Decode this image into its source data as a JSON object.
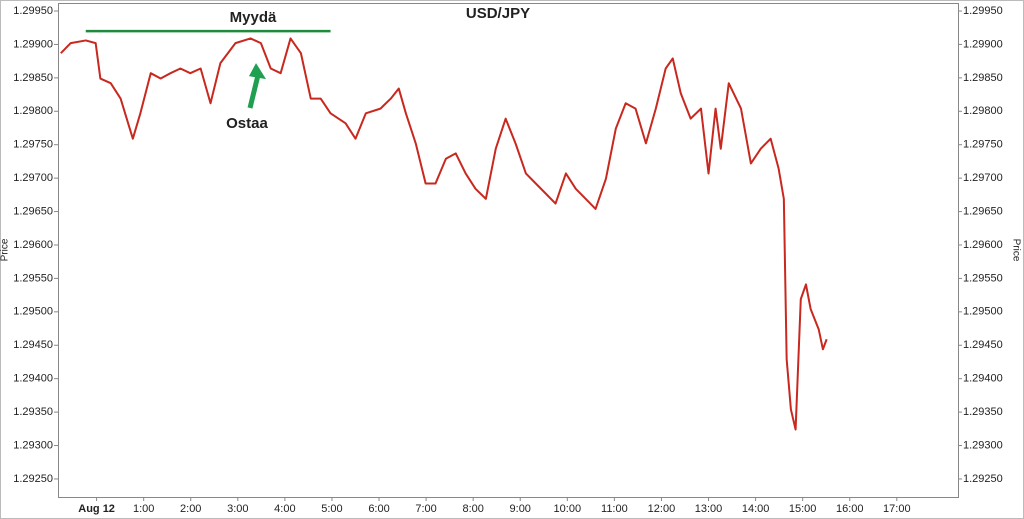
{
  "chart_data": {
    "type": "line",
    "title": "USD/JPY",
    "y_label": "Price",
    "x": [
      -0.76,
      -0.55,
      -0.23,
      -0.02,
      0.08,
      0.3,
      0.51,
      0.77,
      0.93,
      1.15,
      1.36,
      1.57,
      1.78,
      1.99,
      2.21,
      2.42,
      2.63,
      2.95,
      3.27,
      3.49,
      3.7,
      3.91,
      4.12,
      4.34,
      4.55,
      4.76,
      4.97,
      5.29,
      5.5,
      5.72,
      6.03,
      6.25,
      6.42,
      6.57,
      6.78,
      6.99,
      7.2,
      7.42,
      7.63,
      7.84,
      8.05,
      8.27,
      8.48,
      8.69,
      8.9,
      9.12,
      9.33,
      9.54,
      9.75,
      9.97,
      10.18,
      10.39,
      10.6,
      10.82,
      11.03,
      11.24,
      11.45,
      11.67,
      11.88,
      12.09,
      12.24,
      12.41,
      12.62,
      12.84,
      13.0,
      13.15,
      13.26,
      13.43,
      13.69,
      13.9,
      14.11,
      14.32,
      14.49,
      14.6,
      14.66,
      14.75,
      14.85,
      14.96,
      15.07,
      15.17,
      15.34,
      15.43,
      15.51
    ],
    "series": [
      {
        "name": "USD/JPY",
        "color": "#c8281e",
        "values": [
          1.29887,
          1.29902,
          1.29906,
          1.29902,
          1.29849,
          1.29842,
          1.29819,
          1.29759,
          1.29797,
          1.29857,
          1.29849,
          1.29857,
          1.29864,
          1.29857,
          1.29864,
          1.29812,
          1.29872,
          1.29902,
          1.29909,
          1.29902,
          1.29864,
          1.29857,
          1.29909,
          1.29887,
          1.29819,
          1.29819,
          1.29797,
          1.29782,
          1.29759,
          1.29797,
          1.29804,
          1.29819,
          1.29834,
          1.29797,
          1.29752,
          1.29692,
          1.29692,
          1.29729,
          1.29737,
          1.29707,
          1.29684,
          1.29669,
          1.29744,
          1.29789,
          1.29752,
          1.29707,
          1.29692,
          1.29677,
          1.29662,
          1.29707,
          1.29684,
          1.29669,
          1.29654,
          1.29699,
          1.29774,
          1.29812,
          1.29804,
          1.29752,
          1.29804,
          1.29864,
          1.29879,
          1.29827,
          1.29789,
          1.29804,
          1.29707,
          1.29804,
          1.29744,
          1.29842,
          1.29804,
          1.29722,
          1.29744,
          1.29759,
          1.29714,
          1.29669,
          1.29429,
          1.29354,
          1.29324,
          1.29519,
          1.29541,
          1.29504,
          1.29474,
          1.29444,
          1.29459
        ]
      }
    ],
    "xlim": [
      -0.82,
      18.3
    ],
    "xticks": [
      {
        "value": 0,
        "label": "Aug 12"
      },
      {
        "value": 1,
        "label": "1:00"
      },
      {
        "value": 2,
        "label": "2:00"
      },
      {
        "value": 3,
        "label": "3:00"
      },
      {
        "value": 4,
        "label": "4:00"
      },
      {
        "value": 5,
        "label": "5:00"
      },
      {
        "value": 6,
        "label": "6:00"
      },
      {
        "value": 7,
        "label": "7:00"
      },
      {
        "value": 8,
        "label": "8:00"
      },
      {
        "value": 9,
        "label": "9:00"
      },
      {
        "value": 10,
        "label": "10:00"
      },
      {
        "value": 11,
        "label": "11:00"
      },
      {
        "value": 12,
        "label": "12:00"
      },
      {
        "value": 13,
        "label": "13:00"
      },
      {
        "value": 14,
        "label": "14:00"
      },
      {
        "value": 15,
        "label": "15:00"
      },
      {
        "value": 16,
        "label": "16:00"
      },
      {
        "value": 17,
        "label": "17:00"
      }
    ],
    "ylim": [
      1.29223,
      1.29962
    ],
    "yticks": [
      {
        "value": 1.2925,
        "label": "1.29250"
      },
      {
        "value": 1.293,
        "label": "1.29300"
      },
      {
        "value": 1.2935,
        "label": "1.29350"
      },
      {
        "value": 1.294,
        "label": "1.29400"
      },
      {
        "value": 1.2945,
        "label": "1.29450"
      },
      {
        "value": 1.295,
        "label": "1.29500"
      },
      {
        "value": 1.2955,
        "label": "1.29550"
      },
      {
        "value": 1.296,
        "label": "1.29600"
      },
      {
        "value": 1.2965,
        "label": "1.29650"
      },
      {
        "value": 1.297,
        "label": "1.29700"
      },
      {
        "value": 1.2975,
        "label": "1.29750"
      },
      {
        "value": 1.298,
        "label": "1.29800"
      },
      {
        "value": 1.2985,
        "label": "1.29850"
      },
      {
        "value": 1.299,
        "label": "1.29900"
      },
      {
        "value": 1.2995,
        "label": "1.29950"
      }
    ],
    "annotations": [
      {
        "text": "Myydä",
        "value": 1.2992,
        "color": "#1e8a3c"
      },
      {
        "text": "Ostaa",
        "value": 1.29872,
        "color": "#1ea050"
      }
    ]
  }
}
